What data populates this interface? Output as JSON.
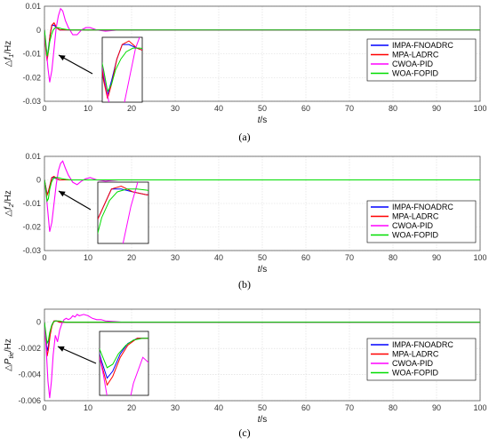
{
  "colors": {
    "IMPA-FNOADRC": "#0000ff",
    "MPA-LADRC": "#ff0000",
    "CWOA-PID": "#ff00ff",
    "WOA-FOPID": "#00dd00",
    "grid": "#d9d9d9",
    "axis": "#555555"
  },
  "chart_data": [
    {
      "type": "line",
      "caption": "(a)",
      "ylabel_parts": [
        "△",
        "f",
        "1",
        "/Hz"
      ],
      "xlabel_parts": [
        "t",
        "/s"
      ],
      "xlim": [
        0,
        100
      ],
      "ylim": [
        -0.03,
        0.01
      ],
      "xticks": [
        0,
        10,
        20,
        30,
        40,
        50,
        60,
        70,
        80,
        90,
        100
      ],
      "yticks": [
        -0.03,
        -0.02,
        -0.01,
        0,
        0.01
      ],
      "ytick_labels": [
        "-0.03",
        "-0.02",
        "-0.01",
        "0",
        "0.01"
      ],
      "grid": true,
      "legend": "right",
      "inset": true,
      "series": [
        {
          "name": "IMPA-FNOADRC",
          "x": [
            0,
            0.3,
            0.6,
            0.9,
            1.3,
            1.7,
            2.2,
            2.8,
            3.5,
            4.5,
            6,
            8,
            100
          ],
          "y": [
            0,
            -0.007,
            -0.012,
            -0.008,
            -0.002,
            0.002,
            0.002,
            0.001,
            0,
            0,
            0,
            0,
            0
          ]
        },
        {
          "name": "MPA-LADRC",
          "x": [
            0,
            0.3,
            0.6,
            0.9,
            1.3,
            1.7,
            2.2,
            2.8,
            3.5,
            4.5,
            6,
            8,
            100
          ],
          "y": [
            0,
            -0.008,
            -0.013,
            -0.009,
            -0.002,
            0.002,
            0.003,
            0.001,
            0,
            0,
            0,
            0,
            0
          ]
        },
        {
          "name": "CWOA-PID",
          "x": [
            0,
            0.4,
            0.8,
            1.2,
            1.7,
            2.2,
            2.7,
            3.2,
            3.7,
            4.2,
            4.8,
            5.5,
            6.5,
            7.5,
            8.5,
            9.5,
            10.5,
            12,
            14,
            17,
            20,
            23,
            100
          ],
          "y": [
            0,
            -0.008,
            -0.016,
            -0.022,
            -0.017,
            -0.008,
            0.001,
            0.006,
            0.009,
            0.008,
            0.004,
            0.001,
            -0.002,
            -0.002,
            0,
            0.001,
            0.001,
            0,
            -0.0005,
            0,
            0,
            0,
            0
          ]
        },
        {
          "name": "WOA-FOPID",
          "x": [
            0,
            0.3,
            0.6,
            0.9,
            1.2,
            1.6,
            2.0,
            2.5,
            3,
            3.5,
            4,
            5,
            6,
            8,
            100
          ],
          "y": [
            0,
            -0.005,
            -0.011,
            -0.009,
            -0.005,
            -0.002,
            0,
            0.001,
            0.001,
            0.0008,
            0.0005,
            0.0002,
            0,
            0,
            0
          ]
        }
      ]
    },
    {
      "type": "line",
      "caption": "(b)",
      "ylabel_parts": [
        "△",
        "f",
        "2",
        "/Hz"
      ],
      "xlabel_parts": [
        "t",
        "/s"
      ],
      "xlim": [
        0,
        100
      ],
      "ylim": [
        -0.03,
        0.01
      ],
      "xticks": [
        0,
        10,
        20,
        30,
        40,
        50,
        60,
        70,
        80,
        90,
        100
      ],
      "yticks": [
        -0.03,
        -0.02,
        -0.01,
        0,
        0.01
      ],
      "ytick_labels": [
        "-0.03",
        "-0.02",
        "-0.01",
        "0",
        "0.01"
      ],
      "grid": true,
      "legend": "right",
      "inset": true,
      "series": [
        {
          "name": "IMPA-FNOADRC",
          "x": [
            0,
            0.3,
            0.6,
            0.9,
            1.3,
            1.7,
            2.2,
            2.8,
            3.5,
            4.5,
            6,
            8,
            100
          ],
          "y": [
            0,
            -0.003,
            -0.006,
            -0.005,
            -0.002,
            0.001,
            0.001,
            0.0005,
            0,
            0,
            0,
            0,
            0
          ]
        },
        {
          "name": "MPA-LADRC",
          "x": [
            0,
            0.3,
            0.6,
            0.9,
            1.3,
            1.7,
            2.2,
            2.8,
            3.5,
            4.5,
            6,
            8,
            100
          ],
          "y": [
            0,
            -0.003,
            -0.0065,
            -0.005,
            -0.002,
            0.001,
            0.0015,
            0.0005,
            0,
            0,
            0,
            0,
            0
          ]
        },
        {
          "name": "CWOA-PID",
          "x": [
            0,
            0.4,
            0.8,
            1.2,
            1.7,
            2.2,
            2.7,
            3.2,
            3.7,
            4.2,
            4.8,
            5.5,
            6.5,
            7.5,
            8.5,
            9.5,
            10.5,
            12,
            14,
            17,
            20,
            23,
            100
          ],
          "y": [
            0,
            -0.006,
            -0.014,
            -0.022,
            -0.018,
            -0.01,
            -0.002,
            0.004,
            0.007,
            0.008,
            0.005,
            0.002,
            -0.001,
            -0.002,
            -0.0005,
            0.0005,
            0.001,
            0,
            -0.0005,
            0,
            0,
            0,
            0
          ]
        },
        {
          "name": "WOA-FOPID",
          "x": [
            0,
            0.3,
            0.6,
            0.9,
            1.2,
            1.6,
            2.0,
            2.5,
            3,
            3.5,
            4,
            5,
            6,
            8,
            100
          ],
          "y": [
            0,
            -0.004,
            -0.009,
            -0.008,
            -0.004,
            -0.001,
            0.0005,
            0.001,
            0.001,
            0.0008,
            0.0005,
            0.0002,
            0,
            0,
            0
          ]
        }
      ]
    },
    {
      "type": "line",
      "caption": "(c)",
      "ylabel_parts": [
        "△",
        "P",
        "tie",
        "/Hz"
      ],
      "xlabel_parts": [
        "t",
        "/s"
      ],
      "xlim": [
        0,
        100
      ],
      "ylim": [
        -0.006,
        0.001
      ],
      "xticks": [
        0,
        10,
        20,
        30,
        40,
        50,
        60,
        70,
        80,
        90,
        100
      ],
      "yticks": [
        -0.006,
        -0.004,
        -0.002,
        0
      ],
      "ytick_labels": [
        "-0.006",
        "-0.004",
        "-0.002",
        "0"
      ],
      "grid": true,
      "legend": "right",
      "inset": true,
      "series": [
        {
          "name": "IMPA-FNOADRC",
          "x": [
            0,
            0.3,
            0.6,
            0.9,
            1.3,
            1.7,
            2.2,
            2.8,
            3.5,
            4.5,
            6,
            8,
            100
          ],
          "y": [
            0,
            -0.0012,
            -0.0022,
            -0.0018,
            -0.0008,
            -0.0002,
            0.0001,
            0.0001,
            0,
            0,
            0,
            0,
            0
          ]
        },
        {
          "name": "MPA-LADRC",
          "x": [
            0,
            0.3,
            0.6,
            0.9,
            1.3,
            1.7,
            2.2,
            2.8,
            3.5,
            4.5,
            6,
            8,
            100
          ],
          "y": [
            0,
            -0.0014,
            -0.0026,
            -0.0021,
            -0.001,
            -0.0003,
            0.0001,
            0.0001,
            0,
            0,
            0,
            0,
            0
          ]
        },
        {
          "name": "CWOA-PID",
          "x": [
            0,
            0.4,
            0.8,
            1.2,
            1.6,
            2.0,
            2.5,
            3.0,
            3.5,
            4.0,
            4.5,
            5.0,
            5.5,
            6.0,
            6.5,
            7.0,
            7.5,
            8.0,
            9.0,
            10.0,
            11.0,
            12.0,
            13.0,
            14.0,
            16.0,
            18.0,
            20.0,
            100
          ],
          "y": [
            0,
            -0.002,
            -0.0045,
            -0.0058,
            -0.0045,
            -0.0025,
            -0.001,
            -0.0015,
            -0.0006,
            -0.0001,
            0.0002,
            0.0003,
            0.0002,
            0.0003,
            0.0005,
            0.0004,
            0.0006,
            0.0005,
            0.0006,
            0.0005,
            0.0003,
            0.0002,
            0.0002,
            0.0001,
            5e-05,
            0,
            0,
            0
          ]
        },
        {
          "name": "WOA-FOPID",
          "x": [
            0,
            0.3,
            0.6,
            0.9,
            1.2,
            1.6,
            2.0,
            2.5,
            3,
            3.5,
            4,
            5,
            6,
            8,
            100
          ],
          "y": [
            0,
            -0.0008,
            -0.0016,
            -0.0014,
            -0.0008,
            -0.0003,
            0,
            0.0001,
            0.0001,
            0.0001,
            5e-05,
            0,
            0,
            0,
            0
          ]
        }
      ]
    }
  ]
}
